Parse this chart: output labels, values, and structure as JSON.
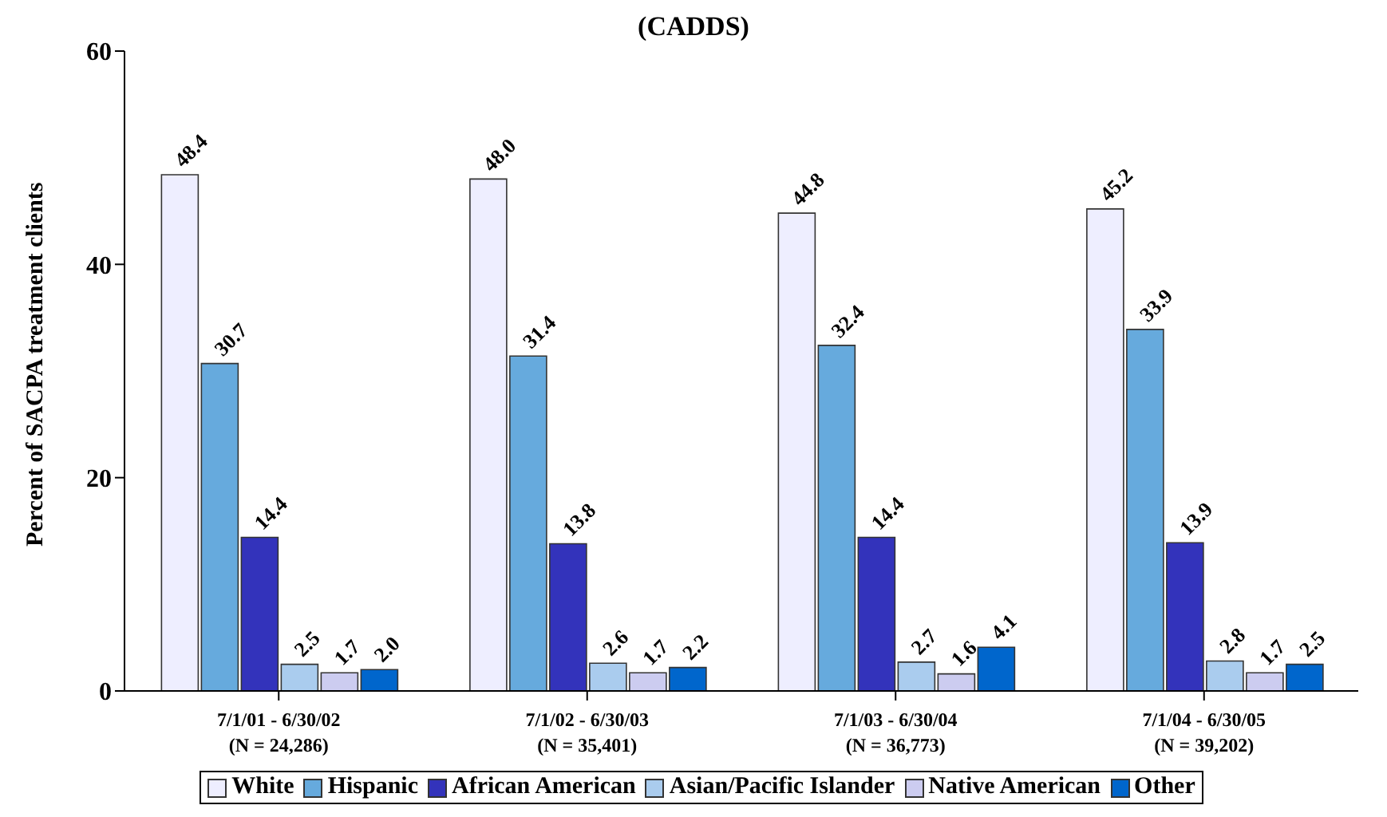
{
  "chart_data": {
    "type": "bar",
    "title": "(CADDS)",
    "ylabel": "Percent of SACPA treatment clients",
    "categories": [
      "7/1/01 - 6/30/02\n(N = 24,286)",
      "7/1/02 - 6/30/03\n(N = 35,401)",
      "7/1/03 - 6/30/04\n(N = 36,773)",
      "7/1/04 - 6/30/05\n(N = 39,202)"
    ],
    "series": [
      {
        "name": "White",
        "color": "#eeeeff",
        "values": [
          48.4,
          48.0,
          44.8,
          45.2
        ],
        "value_labels": [
          "48.4",
          "48.0",
          "44.8",
          "45.2"
        ]
      },
      {
        "name": "Hispanic",
        "color": "#66aadd",
        "values": [
          30.7,
          31.4,
          32.4,
          33.9
        ],
        "value_labels": [
          "30.7",
          "31.4",
          "32.4",
          "33.9"
        ]
      },
      {
        "name": "African American",
        "color": "#3333bb",
        "values": [
          14.4,
          13.8,
          14.4,
          13.9
        ],
        "value_labels": [
          "14.4",
          "13.8",
          "14.4",
          "13.9"
        ]
      },
      {
        "name": "Asian/Pacific Islander",
        "color": "#aaccee",
        "values": [
          2.5,
          2.6,
          2.7,
          2.8
        ],
        "value_labels": [
          "2.5",
          "2.6",
          "2.7",
          "2.8"
        ]
      },
      {
        "name": "Native American",
        "color": "#ccccf0",
        "values": [
          1.7,
          1.7,
          1.6,
          1.7
        ],
        "value_labels": [
          "1.7",
          "1.7",
          "1.6",
          "1.7"
        ]
      },
      {
        "name": "Other",
        "color": "#0066cc",
        "values": [
          2.0,
          2.2,
          4.1,
          2.5
        ],
        "value_labels": [
          "2.0",
          "2.2",
          "4.1",
          "2.5"
        ]
      }
    ],
    "ylim": [
      0,
      60
    ],
    "yticks": [
      0,
      20,
      40,
      60
    ],
    "grid": false,
    "legend": "bottom"
  }
}
